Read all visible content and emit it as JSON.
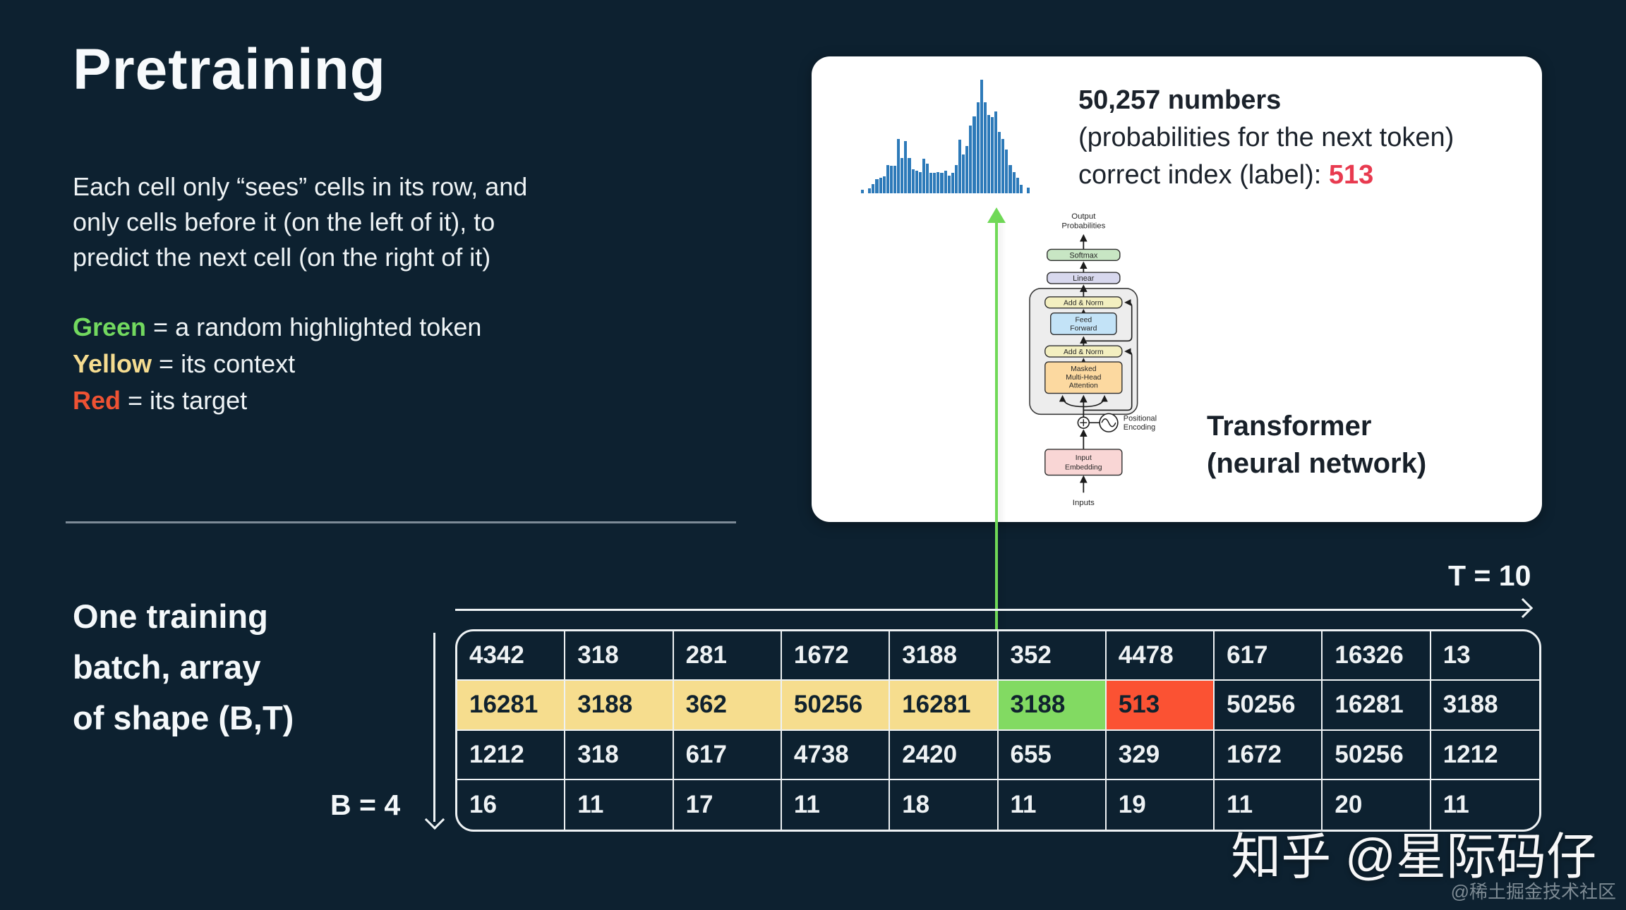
{
  "slide": {
    "title": "Pretraining",
    "paragraph_lines": [
      "Each cell only “sees” cells in its row, and",
      "only cells before it (on the left of it), to",
      "predict the next cell (on the right of it)"
    ],
    "legend": [
      {
        "term": "Green",
        "rest": "= a random highlighted token",
        "color": "#72d95f"
      },
      {
        "term": "Yellow",
        "rest": "= its context",
        "color": "#f5dc90"
      },
      {
        "term": "Red",
        "rest": "= its target",
        "color": "#ee5233"
      }
    ]
  },
  "card": {
    "headline": "50,257 numbers",
    "subline": "(probabilities for the next token)",
    "label_prefix": "correct index (label): ",
    "label_value": "513",
    "label_value_color": "#e83a4f",
    "caption_line1": "Transformer",
    "caption_line2": "(neural network)"
  },
  "chart_data": {
    "type": "bar",
    "title": "probability distribution over the 50,257 token vocabulary",
    "xlabel": "",
    "ylabel": "",
    "grid": false,
    "legend_position": "none",
    "ylim": [
      0,
      100
    ],
    "bar_color": "#2d7ab9",
    "values": [
      3,
      0,
      4,
      8,
      12,
      13,
      14,
      24,
      23,
      23,
      46,
      30,
      44,
      30,
      20,
      19,
      18,
      29,
      25,
      17,
      17,
      18,
      17,
      19,
      15,
      17,
      24,
      45,
      33,
      40,
      57,
      65,
      77,
      96,
      77,
      66,
      64,
      69,
      52,
      46,
      37,
      24,
      18,
      13,
      7,
      0,
      5
    ]
  },
  "diagram": {
    "output_label_line1": "Output",
    "output_label_line2": "Probabilities",
    "softmax": "Softmax",
    "linear": "Linear",
    "add_norm_top": "Add & Norm",
    "ff_line1": "Feed",
    "ff_line2": "Forward",
    "add_norm_bottom": "Add & Norm",
    "masked_line1": "Masked",
    "masked_line2": "Multi-Head",
    "masked_line3": "Attention",
    "pos_line1": "Positional",
    "pos_line2": "Encoding",
    "embed_line1": "Input",
    "embed_line2": "Embedding",
    "inputs": "Inputs"
  },
  "batch": {
    "label_lines": [
      "One training",
      "batch, array",
      "of shape (B,T)"
    ],
    "t_label": "T = 10",
    "b_label": "B = 4",
    "table": {
      "rows": [
        [
          "4342",
          "318",
          "281",
          "1672",
          "3188",
          "352",
          "4478",
          "617",
          "16326",
          "13"
        ],
        [
          "16281",
          "3188",
          "362",
          "50256",
          "16281",
          "3188",
          "513",
          "50256",
          "16281",
          "3188"
        ],
        [
          "1212",
          "318",
          "617",
          "4738",
          "2420",
          "655",
          "329",
          "1672",
          "50256",
          "1212"
        ],
        [
          "16",
          "11",
          "17",
          "11",
          "18",
          "11",
          "19",
          "11",
          "20",
          "11"
        ]
      ],
      "highlight_row": 1,
      "yellow_cols": [
        0,
        1,
        2,
        3,
        4
      ],
      "green_col": 5,
      "red_col": 6,
      "colors": {
        "yellow": "#f6dd8e",
        "green": "#82da62",
        "red": "#fb5233"
      }
    }
  },
  "watermark": {
    "main": "知乎 @星际码仔",
    "sub": "@稀土掘金技术社区"
  }
}
